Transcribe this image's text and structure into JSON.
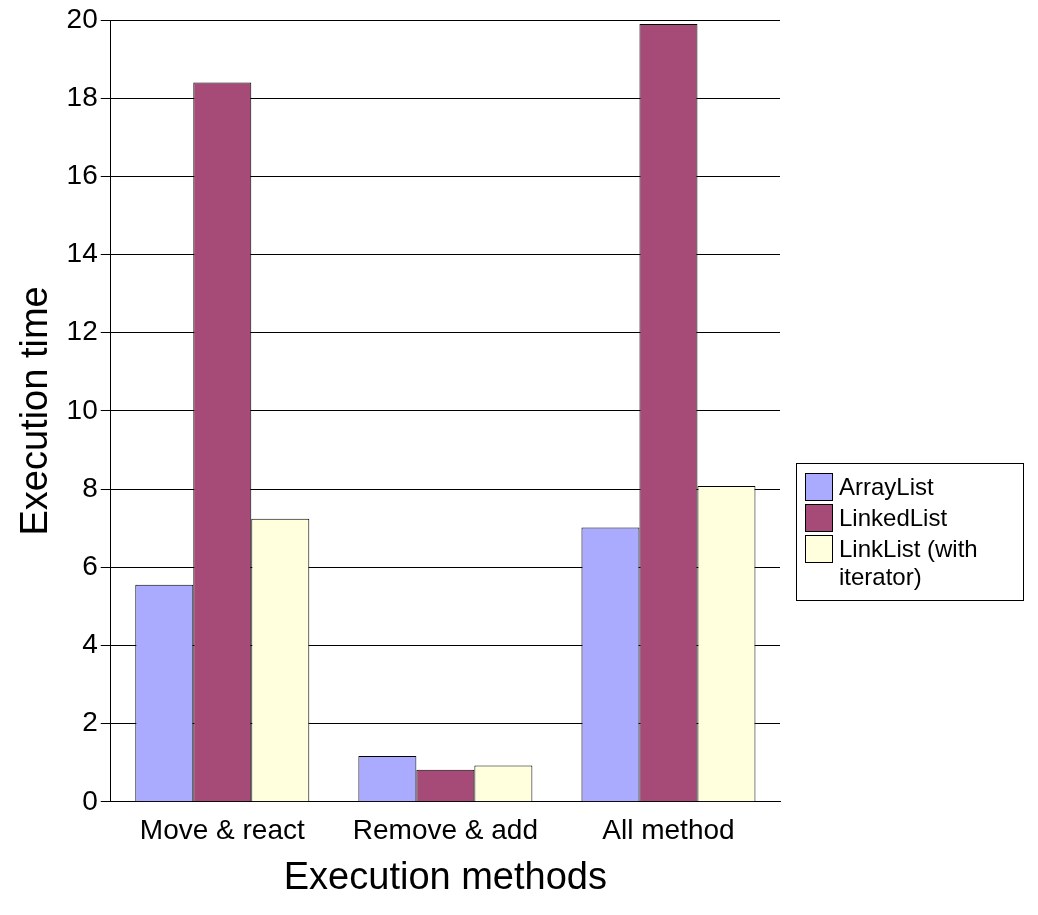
{
  "chart_data": {
    "type": "bar",
    "xlabel": "Execution methods",
    "ylabel": "Execution time",
    "categories": [
      "Move & react",
      "Remove & add",
      "All method"
    ],
    "series": [
      {
        "name": "ArrayList",
        "color": "#aaaaff",
        "values": [
          5.55,
          1.17,
          7.02
        ]
      },
      {
        "name": "LinkedList",
        "color": "#a64a78",
        "values": [
          18.4,
          0.82,
          19.9
        ]
      },
      {
        "name": "LinkList (with iterator)",
        "color": "#ffffdd",
        "values": [
          7.24,
          0.93,
          8.08
        ]
      }
    ],
    "ylim": [
      0,
      20
    ],
    "yticks": [
      0,
      2,
      4,
      6,
      8,
      10,
      12,
      14,
      16,
      18,
      20
    ],
    "grid": "y",
    "legend": "right"
  }
}
